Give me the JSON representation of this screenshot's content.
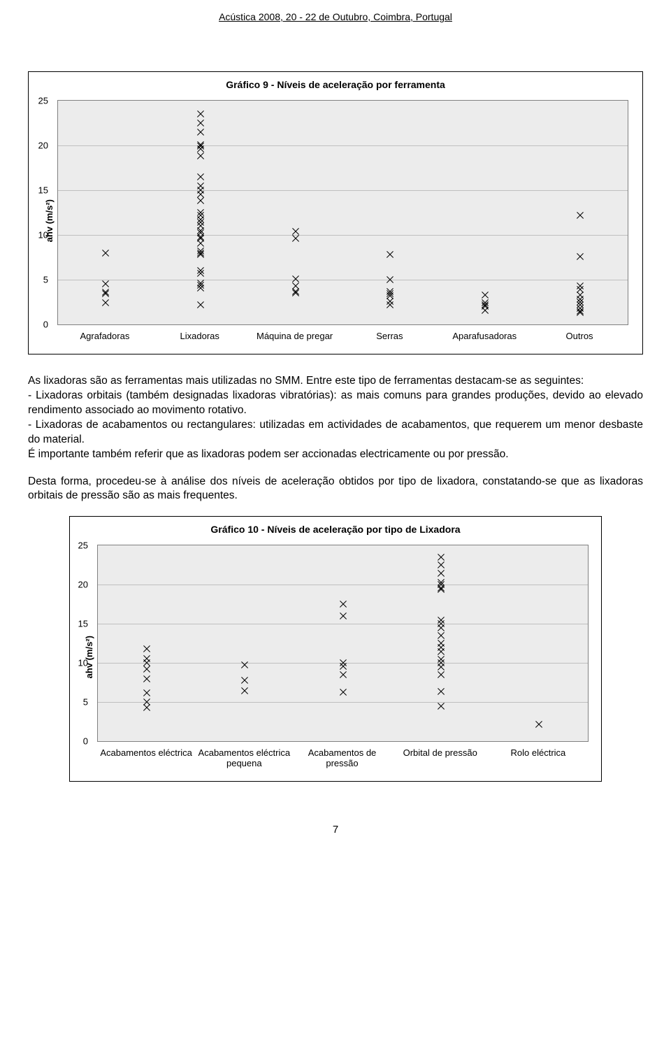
{
  "running_header": "Acústica 2008, 20 - 22 de Outubro, Coimbra, Portugal",
  "page_number": "7",
  "chart9": {
    "title": "Gráfico 9 - Níveis de aceleração por ferramenta",
    "ylabel": "ahv (m/s²)",
    "ymax": 25,
    "yticks": [
      "0",
      "5",
      "10",
      "15",
      "20",
      "25"
    ],
    "categories": [
      "Agrafadoras",
      "Lixadoras",
      "Máquina de pregar",
      "Serras",
      "Aparafusadoras",
      "Outros"
    ],
    "background_color": "#ececec",
    "border_color": "#808080",
    "grid_color": "#bfbfbf",
    "marker_color": "#000000",
    "series": [
      [
        8.0,
        4.5,
        3.6,
        3.4,
        2.4
      ],
      [
        23.5,
        22.5,
        21.5,
        20.1,
        19.9,
        19.6,
        18.8,
        16.5,
        15.5,
        15.0,
        14.5,
        13.8,
        12.5,
        12.2,
        11.7,
        11.4,
        11.0,
        10.5,
        10.2,
        9.8,
        9.6,
        9.1,
        8.2,
        8.0,
        7.8,
        6.0,
        5.7,
        4.6,
        4.4,
        4.1,
        2.2
      ],
      [
        10.4,
        9.6,
        5.1,
        4.3,
        3.7,
        3.5
      ],
      [
        7.8,
        5.0,
        3.7,
        3.4,
        3.2,
        2.6,
        2.2
      ],
      [
        3.3,
        2.4,
        2.2,
        2.0,
        1.6
      ],
      [
        12.2,
        7.6,
        4.3,
        3.9,
        3.3,
        2.8,
        2.5,
        2.2,
        1.8,
        1.5,
        1.3
      ]
    ]
  },
  "para1": "As lixadoras são as ferramentas mais utilizadas no SMM. Entre este tipo de ferramentas destacam-se as seguintes:",
  "para2": "- Lixadoras orbitais (também designadas lixadoras vibratórias): as mais comuns para grandes produções, devido ao elevado rendimento associado ao movimento rotativo.",
  "para3": "- Lixadoras de acabamentos ou rectangulares: utilizadas em actividades de acabamentos, que requerem um menor desbaste do material.",
  "para4": "É importante também referir que as lixadoras podem ser accionadas electricamente ou por pressão.",
  "para5": "Desta forma, procedeu-se à análise dos níveis de aceleração obtidos por tipo de lixadora, constatando-se que as lixadoras orbitais de pressão são as mais frequentes.",
  "chart10": {
    "title": "Gráfico 10 - Níveis de aceleração por tipo de Lixadora",
    "ylabel": "ahv (m/s²)",
    "ymax": 25,
    "yticks": [
      "0",
      "5",
      "10",
      "15",
      "20",
      "25"
    ],
    "categories": [
      "Acabamentos eléctrica",
      "Acabamentos eléctrica pequena",
      "Acabamentos de pressão",
      "Orbital de pressão",
      "Rolo eléctrica"
    ],
    "background_color": "#ececec",
    "border_color": "#808080",
    "grid_color": "#bfbfbf",
    "marker_color": "#000000",
    "series": [
      [
        11.8,
        10.6,
        10.0,
        9.2,
        8.0,
        6.2,
        5.0,
        4.3
      ],
      [
        9.8,
        7.8,
        6.5
      ],
      [
        17.5,
        16.0,
        10.0,
        9.6,
        8.5,
        6.3
      ],
      [
        23.5,
        22.5,
        21.5,
        20.3,
        20.0,
        19.6,
        19.4,
        15.5,
        15.0,
        14.5,
        13.5,
        12.5,
        12.0,
        11.5,
        10.5,
        10.0,
        9.5,
        8.5,
        6.4,
        4.5
      ],
      [
        2.2
      ]
    ]
  }
}
